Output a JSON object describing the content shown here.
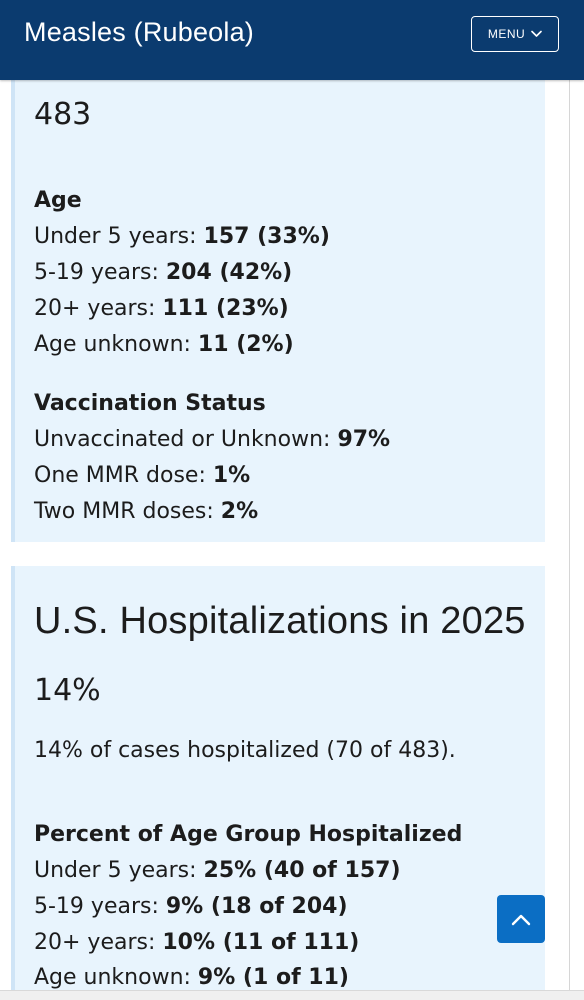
{
  "header": {
    "title": "Measles (Rubeola)",
    "menu_label": "MENU",
    "background_color": "#0b3b6f"
  },
  "cases_card": {
    "total": "483",
    "age": {
      "heading": "Age",
      "rows": [
        {
          "label": "Under 5 years: ",
          "value": "157 (33%)"
        },
        {
          "label": "5-19 years: ",
          "value": "204 (42%)"
        },
        {
          "label": "20+ years: ",
          "value": "111 (23%)"
        },
        {
          "label": "Age unknown: ",
          "value": "11 (2%)"
        }
      ]
    },
    "vaccination": {
      "heading": "Vaccination Status",
      "rows": [
        {
          "label": "Unvaccinated or Unknown: ",
          "value": "97%"
        },
        {
          "label": "One MMR dose: ",
          "value": "1%"
        },
        {
          "label": "Two MMR doses: ",
          "value": "2%"
        }
      ]
    }
  },
  "hospitalizations_card": {
    "title": "U.S. Hospitalizations in 2025",
    "percent": "14%",
    "summary": "14% of cases hospitalized (70 of 483).",
    "by_age": {
      "heading": "Percent of Age Group Hospitalized",
      "rows": [
        {
          "label": "Under 5 years: ",
          "value": "25% (40 of 157)"
        },
        {
          "label": "5-19 years: ",
          "value": "9% (18 of 204)"
        },
        {
          "label": "20+ years: ",
          "value": "10% (11 of 111)"
        },
        {
          "label": "Age unknown: ",
          "value": "9% (1 of 11)"
        }
      ]
    }
  },
  "icons": {
    "menu": "chevron-down-icon",
    "scroll_top": "chevron-up-icon"
  },
  "colors": {
    "card_background": "#e8f4fd",
    "accent_button": "#0b6ec4"
  }
}
